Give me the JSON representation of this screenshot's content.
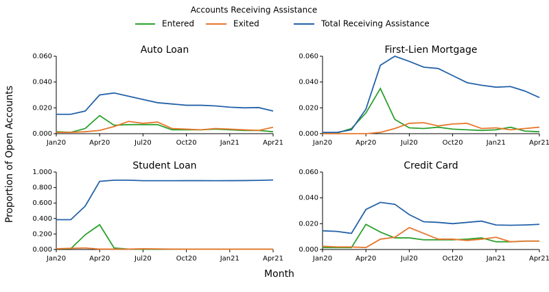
{
  "legend_title": "Accounts Receiving Assistance",
  "xlabel": "Month",
  "ylabel": "Proportion of Open Accounts",
  "chart_data": [
    {
      "type": "line",
      "title": "Auto Loan",
      "categories": [
        "Jan20",
        null,
        null,
        "Apr20",
        null,
        null,
        "Jul20",
        null,
        null,
        "Oct20",
        null,
        null,
        "Jan21",
        null,
        null,
        "Apr21"
      ],
      "ylim": [
        0,
        0.06
      ],
      "yticks": [
        {
          "value": 0,
          "label": "0.000"
        },
        {
          "value": 0.02,
          "label": "0.020"
        },
        {
          "value": 0.04,
          "label": "0.040"
        },
        {
          "value": 0.06,
          "label": "0.060"
        }
      ],
      "series": [
        {
          "name": "Entered",
          "color": "#2ca02c",
          "values": [
            0.0015,
            0.001,
            0.004,
            0.014,
            0.0065,
            0.007,
            0.007,
            0.007,
            0.003,
            0.003,
            0.003,
            0.0035,
            0.003,
            0.0025,
            0.0025,
            0.0015
          ]
        },
        {
          "name": "Exited",
          "color": "#e6762b",
          "values": [
            0.001,
            0.001,
            0.0015,
            0.0025,
            0.0055,
            0.0095,
            0.008,
            0.009,
            0.004,
            0.0035,
            0.003,
            0.004,
            0.0035,
            0.003,
            0.0025,
            0.005
          ]
        },
        {
          "name": "Total Receiving Assistance",
          "color": "#2361a8",
          "values": [
            0.015,
            0.015,
            0.0175,
            0.03,
            0.0315,
            0.029,
            0.0265,
            0.024,
            0.023,
            0.022,
            0.022,
            0.0215,
            0.0205,
            0.02,
            0.0202,
            0.0175
          ]
        }
      ]
    },
    {
      "type": "line",
      "title": "First-Lien Mortgage",
      "categories": [
        "Jan20",
        null,
        null,
        "Apr20",
        null,
        null,
        "Jul20",
        null,
        null,
        "Oct20",
        null,
        null,
        "Jan21",
        null,
        null,
        "Apr21"
      ],
      "ylim": [
        0,
        0.06
      ],
      "yticks": [
        {
          "value": 0,
          "label": "0.000"
        },
        {
          "value": 0.02,
          "label": "0.020"
        },
        {
          "value": 0.04,
          "label": "0.040"
        },
        {
          "value": 0.06,
          "label": "0.060"
        }
      ],
      "series": [
        {
          "name": "Entered",
          "color": "#2ca02c",
          "values": [
            0.0005,
            0.0005,
            0.004,
            0.016,
            0.035,
            0.011,
            0.0045,
            0.004,
            0.005,
            0.0035,
            0.003,
            0.0025,
            0.003,
            0.005,
            0.002,
            0.0015
          ]
        },
        {
          "name": "Exited",
          "color": "#e6762b",
          "values": [
            0,
            0,
            0,
            0,
            0.001,
            0.004,
            0.008,
            0.0085,
            0.006,
            0.0075,
            0.008,
            0.004,
            0.0045,
            0.003,
            0.004,
            0.005
          ]
        },
        {
          "name": "Total Receiving Assistance",
          "color": "#2361a8",
          "values": [
            0.001,
            0.001,
            0.003,
            0.019,
            0.053,
            0.06,
            0.056,
            0.0515,
            0.0505,
            0.045,
            0.0395,
            0.0375,
            0.036,
            0.0365,
            0.033,
            0.028
          ]
        }
      ]
    },
    {
      "type": "line",
      "title": "Student Loan",
      "categories": [
        "Jan20",
        null,
        null,
        "Apr20",
        null,
        null,
        "Jul20",
        null,
        null,
        "Oct20",
        null,
        null,
        "Jan21",
        null,
        null,
        "Apr21"
      ],
      "ylim": [
        0,
        1
      ],
      "yticks": [
        {
          "value": 0,
          "label": "0.000"
        },
        {
          "value": 0.2,
          "label": "0.200"
        },
        {
          "value": 0.4,
          "label": "0.400"
        },
        {
          "value": 0.6,
          "label": "0.600"
        },
        {
          "value": 0.8,
          "label": "0.800"
        },
        {
          "value": 1,
          "label": "1.000"
        }
      ],
      "series": [
        {
          "name": "Entered",
          "color": "#2ca02c",
          "values": [
            0.01,
            0.01,
            0.19,
            0.32,
            0.02,
            0.005,
            0.005,
            0.005,
            0.005,
            0.003,
            0.003,
            0.003,
            0.003,
            0.003,
            0.003,
            0.003
          ]
        },
        {
          "name": "Exited",
          "color": "#e6762b",
          "values": [
            0.01,
            0.015,
            0.02,
            0.005,
            0.005,
            0.005,
            0.01,
            0.008,
            0.005,
            0.004,
            0.004,
            0.004,
            0.004,
            0.004,
            0.004,
            0.004
          ]
        },
        {
          "name": "Total Receiving Assistance",
          "color": "#2361a8",
          "values": [
            0.385,
            0.385,
            0.56,
            0.88,
            0.895,
            0.895,
            0.888,
            0.888,
            0.888,
            0.889,
            0.889,
            0.888,
            0.889,
            0.89,
            0.893,
            0.897
          ]
        }
      ]
    },
    {
      "type": "line",
      "title": "Credit Card",
      "categories": [
        "Jan20",
        null,
        null,
        "Apr20",
        null,
        null,
        "Jul20",
        null,
        null,
        "Oct20",
        null,
        null,
        "Jan21",
        null,
        null,
        "Apr21"
      ],
      "ylim": [
        0,
        0.06
      ],
      "yticks": [
        {
          "value": 0,
          "label": "0.000"
        },
        {
          "value": 0.02,
          "label": "0.020"
        },
        {
          "value": 0.04,
          "label": "0.040"
        },
        {
          "value": 0.06,
          "label": "0.060"
        }
      ],
      "series": [
        {
          "name": "Entered",
          "color": "#2ca02c",
          "values": [
            0.0015,
            0.0015,
            0.0015,
            0.0195,
            0.0135,
            0.009,
            0.009,
            0.0075,
            0.0075,
            0.0075,
            0.008,
            0.009,
            0.006,
            0.006,
            0.0065,
            0.0065
          ]
        },
        {
          "name": "Exited",
          "color": "#e6762b",
          "values": [
            0.0025,
            0.002,
            0.002,
            0.0015,
            0.008,
            0.0095,
            0.017,
            0.0125,
            0.008,
            0.008,
            0.007,
            0.008,
            0.0095,
            0.006,
            0.0065,
            0.0065
          ]
        },
        {
          "name": "Total Receiving Assistance",
          "color": "#2361a8",
          "values": [
            0.0145,
            0.014,
            0.0125,
            0.031,
            0.0365,
            0.035,
            0.027,
            0.0215,
            0.021,
            0.02,
            0.021,
            0.022,
            0.019,
            0.0188,
            0.019,
            0.0195
          ]
        }
      ]
    }
  ]
}
